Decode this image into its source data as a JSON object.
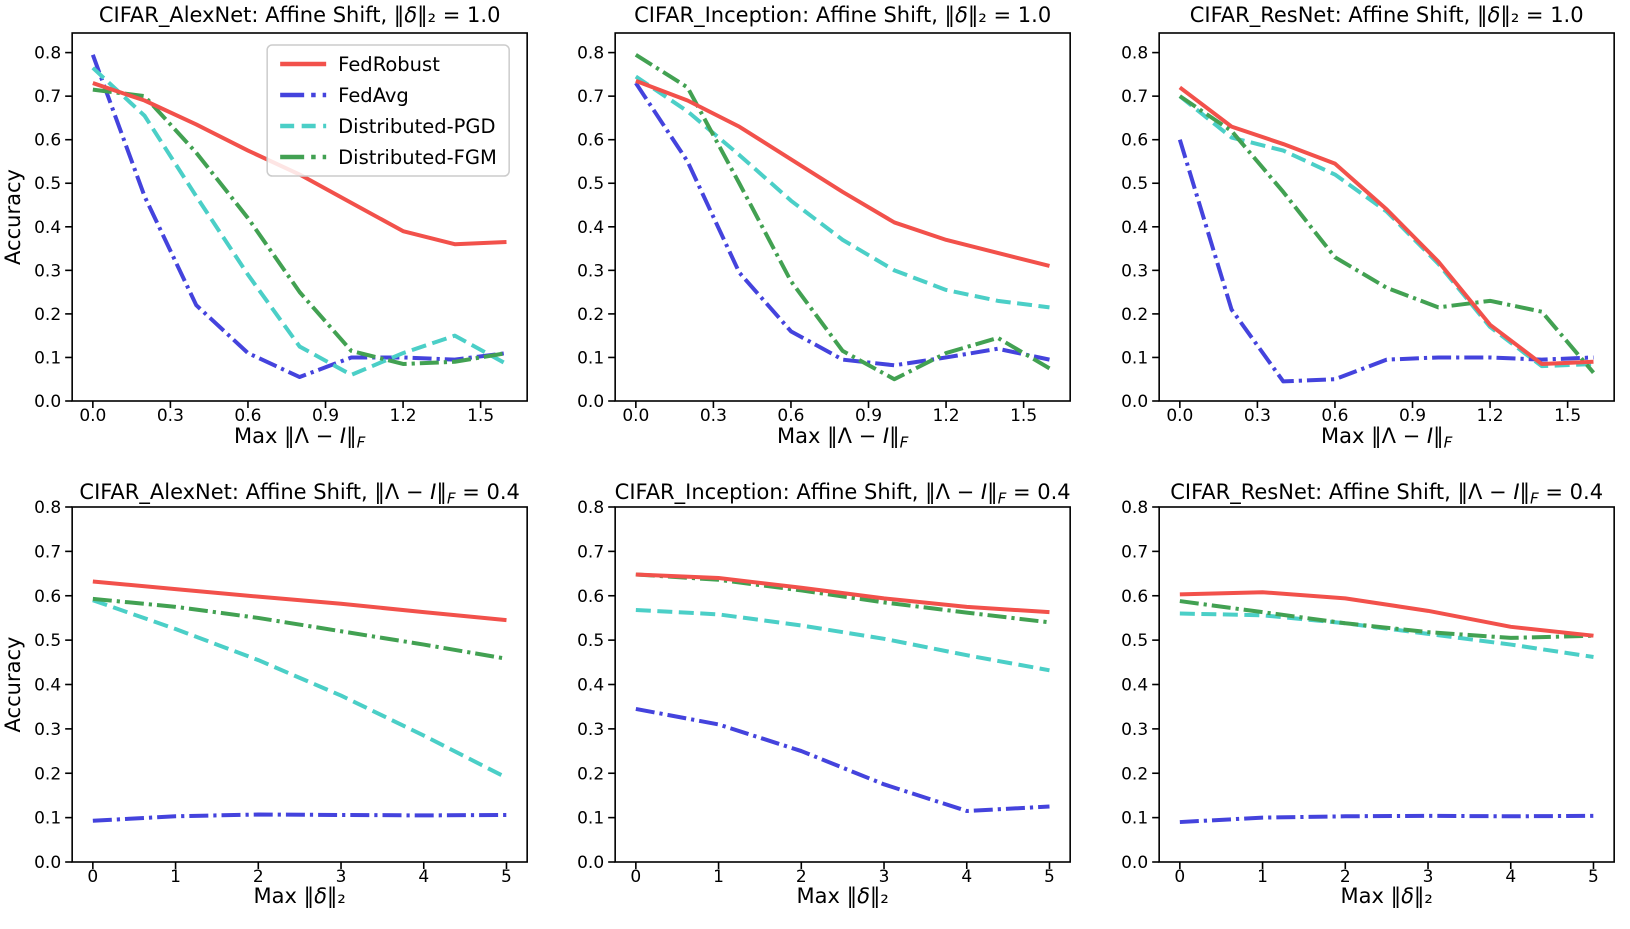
{
  "figure": {
    "background": "#ffffff",
    "ylabel": "Accuracy"
  },
  "colors": {
    "FedRobust": "#f2514b",
    "FedAvg": "#4443dd",
    "Distributed-PGD": "#4bcfc7",
    "Distributed-FGM": "#42a152"
  },
  "series_styles": {
    "FedRobust": "solid",
    "FedAvg": "dashdot",
    "Distributed-PGD": "dashed",
    "Distributed-FGM": "dashdot"
  },
  "draw_order": [
    "FedAvg",
    "Distributed-PGD",
    "Distributed-FGM",
    "FedRobust"
  ],
  "legend": {
    "location": "upper right of first subplot",
    "entries": [
      {
        "label": "FedRobust"
      },
      {
        "label": "FedAvg"
      },
      {
        "label": "Distributed-PGD"
      },
      {
        "label": "Distributed-FGM"
      }
    ]
  },
  "chart_data": [
    {
      "name": "cifar-alexnet-affine-shift-delta-1.0",
      "type": "line",
      "title_text": "CIFAR_AlexNet: Affine Shift, ‖δ‖₂ = 1.0",
      "title_segments": [
        {
          "t": "CIFAR_AlexNet: Affine Shift, ‖"
        },
        {
          "t": "δ",
          "i": true
        },
        {
          "t": "‖₂ = 1.0"
        }
      ],
      "xlabel_text": "Max ‖Λ − I‖F",
      "xlabel_segments": [
        {
          "t": "Max ‖Λ − "
        },
        {
          "t": "I",
          "i": true
        },
        {
          "t": "‖"
        },
        {
          "t": "F",
          "sub": true,
          "i": true
        }
      ],
      "ylabel": "Accuracy",
      "legend": true,
      "xlim": [
        -0.08,
        1.68
      ],
      "ylim": [
        0,
        0.845
      ],
      "xticks": {
        "values": [
          0,
          0.3,
          0.6,
          0.9,
          1.2,
          1.5
        ],
        "labels": [
          "0.0",
          "0.3",
          "0.6",
          "0.9",
          "1.2",
          "1.5"
        ]
      },
      "yticks": {
        "values": [
          0,
          0.1,
          0.2,
          0.3,
          0.4,
          0.5,
          0.6,
          0.7,
          0.8
        ],
        "labels": [
          "0.0",
          "0.1",
          "0.2",
          "0.3",
          "0.4",
          "0.5",
          "0.6",
          "0.7",
          "0.8"
        ]
      },
      "x": [
        0,
        0.2,
        0.4,
        0.6,
        0.8,
        1.0,
        1.2,
        1.4,
        1.6
      ],
      "series": [
        {
          "name": "FedRobust",
          "values": [
            0.73,
            0.69,
            0.635,
            0.575,
            0.52,
            0.455,
            0.39,
            0.36,
            0.365
          ]
        },
        {
          "name": "FedAvg",
          "values": [
            0.795,
            0.47,
            0.22,
            0.11,
            0.055,
            0.1,
            0.1,
            0.095,
            0.11
          ]
        },
        {
          "name": "Distributed-PGD",
          "values": [
            0.765,
            0.655,
            0.47,
            0.29,
            0.125,
            0.06,
            0.11,
            0.15,
            0.085
          ]
        },
        {
          "name": "Distributed-FGM",
          "values": [
            0.715,
            0.7,
            0.57,
            0.42,
            0.25,
            0.115,
            0.085,
            0.09,
            0.11
          ]
        }
      ]
    },
    {
      "name": "cifar-inception-affine-shift-delta-1.0",
      "type": "line",
      "title_text": "CIFAR_Inception: Affine Shift, ‖δ‖₂ = 1.0",
      "title_segments": [
        {
          "t": "CIFAR_Inception: Affine Shift, ‖"
        },
        {
          "t": "δ",
          "i": true
        },
        {
          "t": "‖₂ = 1.0"
        }
      ],
      "xlabel_text": "Max ‖Λ − I‖F",
      "xlabel_segments": [
        {
          "t": "Max ‖Λ − "
        },
        {
          "t": "I",
          "i": true
        },
        {
          "t": "‖"
        },
        {
          "t": "F",
          "sub": true,
          "i": true
        }
      ],
      "ylabel": null,
      "legend": false,
      "xlim": [
        -0.08,
        1.68
      ],
      "ylim": [
        0,
        0.845
      ],
      "xticks": {
        "values": [
          0,
          0.3,
          0.6,
          0.9,
          1.2,
          1.5
        ],
        "labels": [
          "0.0",
          "0.3",
          "0.6",
          "0.9",
          "1.2",
          "1.5"
        ]
      },
      "yticks": {
        "values": [
          0,
          0.1,
          0.2,
          0.3,
          0.4,
          0.5,
          0.6,
          0.7,
          0.8
        ],
        "labels": [
          "0.0",
          "0.1",
          "0.2",
          "0.3",
          "0.4",
          "0.5",
          "0.6",
          "0.7",
          "0.8"
        ]
      },
      "x": [
        0,
        0.2,
        0.4,
        0.6,
        0.8,
        1.0,
        1.2,
        1.4,
        1.6
      ],
      "series": [
        {
          "name": "FedRobust",
          "values": [
            0.735,
            0.69,
            0.63,
            0.555,
            0.48,
            0.41,
            0.37,
            0.34,
            0.31
          ]
        },
        {
          "name": "FedAvg",
          "values": [
            0.73,
            0.55,
            0.295,
            0.16,
            0.095,
            0.082,
            0.1,
            0.12,
            0.095
          ]
        },
        {
          "name": "Distributed-PGD",
          "values": [
            0.745,
            0.665,
            0.565,
            0.46,
            0.37,
            0.3,
            0.255,
            0.23,
            0.215
          ]
        },
        {
          "name": "Distributed-FGM",
          "values": [
            0.795,
            0.72,
            0.5,
            0.275,
            0.115,
            0.05,
            0.11,
            0.145,
            0.075
          ]
        }
      ]
    },
    {
      "name": "cifar-resnet-affine-shift-delta-1.0",
      "type": "line",
      "title_text": "CIFAR_ResNet: Affine Shift, ‖δ‖₂ = 1.0",
      "title_segments": [
        {
          "t": "CIFAR_ResNet: Affine Shift, ‖"
        },
        {
          "t": "δ",
          "i": true
        },
        {
          "t": "‖₂ = 1.0"
        }
      ],
      "xlabel_text": "Max ‖Λ − I‖F",
      "xlabel_segments": [
        {
          "t": "Max ‖Λ − "
        },
        {
          "t": "I",
          "i": true
        },
        {
          "t": "‖"
        },
        {
          "t": "F",
          "sub": true,
          "i": true
        }
      ],
      "ylabel": null,
      "legend": false,
      "xlim": [
        -0.08,
        1.68
      ],
      "ylim": [
        0,
        0.845
      ],
      "xticks": {
        "values": [
          0,
          0.3,
          0.6,
          0.9,
          1.2,
          1.5
        ],
        "labels": [
          "0.0",
          "0.3",
          "0.6",
          "0.9",
          "1.2",
          "1.5"
        ]
      },
      "yticks": {
        "values": [
          0,
          0.1,
          0.2,
          0.3,
          0.4,
          0.5,
          0.6,
          0.7,
          0.8
        ],
        "labels": [
          "0.0",
          "0.1",
          "0.2",
          "0.3",
          "0.4",
          "0.5",
          "0.6",
          "0.7",
          "0.8"
        ]
      },
      "x": [
        0,
        0.2,
        0.4,
        0.6,
        0.8,
        1.0,
        1.2,
        1.4,
        1.6
      ],
      "series": [
        {
          "name": "FedRobust",
          "values": [
            0.72,
            0.63,
            0.59,
            0.545,
            0.44,
            0.32,
            0.175,
            0.085,
            0.09
          ]
        },
        {
          "name": "FedAvg",
          "values": [
            0.6,
            0.21,
            0.045,
            0.05,
            0.095,
            0.1,
            0.1,
            0.095,
            0.1
          ]
        },
        {
          "name": "Distributed-PGD",
          "values": [
            0.7,
            0.605,
            0.575,
            0.52,
            0.435,
            0.315,
            0.17,
            0.08,
            0.085
          ]
        },
        {
          "name": "Distributed-FGM",
          "values": [
            0.7,
            0.62,
            0.48,
            0.33,
            0.26,
            0.215,
            0.23,
            0.205,
            0.065
          ]
        }
      ]
    },
    {
      "name": "cifar-alexnet-affine-shift-lambda-0.4",
      "type": "line",
      "title_text": "CIFAR_AlexNet: Affine Shift, ‖Λ − I‖F = 0.4",
      "title_segments": [
        {
          "t": "CIFAR_AlexNet: Affine Shift, ‖Λ − "
        },
        {
          "t": "I",
          "i": true
        },
        {
          "t": "‖"
        },
        {
          "t": "F",
          "sub": true,
          "i": true
        },
        {
          "t": " = 0.4"
        }
      ],
      "xlabel_text": "Max ‖δ‖₂",
      "xlabel_segments": [
        {
          "t": "Max ‖"
        },
        {
          "t": "δ",
          "i": true
        },
        {
          "t": "‖₂"
        }
      ],
      "ylabel": "Accuracy",
      "legend": false,
      "xlim": [
        -0.25,
        5.25
      ],
      "ylim": [
        0,
        0.8
      ],
      "xticks": {
        "values": [
          0,
          1,
          2,
          3,
          4,
          5
        ],
        "labels": [
          "0",
          "1",
          "2",
          "3",
          "4",
          "5"
        ]
      },
      "yticks": {
        "values": [
          0,
          0.1,
          0.2,
          0.3,
          0.4,
          0.5,
          0.6,
          0.7,
          0.8
        ],
        "labels": [
          "0.0",
          "0.1",
          "0.2",
          "0.3",
          "0.4",
          "0.5",
          "0.6",
          "0.7",
          "0.8"
        ]
      },
      "x": [
        0,
        1,
        2,
        3,
        4,
        5
      ],
      "series": [
        {
          "name": "FedRobust",
          "values": [
            0.632,
            0.615,
            0.598,
            0.582,
            0.563,
            0.545
          ]
        },
        {
          "name": "FedAvg",
          "values": [
            0.093,
            0.103,
            0.107,
            0.106,
            0.105,
            0.106
          ]
        },
        {
          "name": "Distributed-PGD",
          "values": [
            0.59,
            0.525,
            0.455,
            0.375,
            0.285,
            0.19
          ]
        },
        {
          "name": "Distributed-FGM",
          "values": [
            0.593,
            0.575,
            0.55,
            0.52,
            0.49,
            0.458
          ]
        }
      ]
    },
    {
      "name": "cifar-inception-affine-shift-lambda-0.4",
      "type": "line",
      "title_text": "CIFAR_Inception: Affine Shift, ‖Λ − I‖F = 0.4",
      "title_segments": [
        {
          "t": "CIFAR_Inception: Affine Shift, ‖Λ − "
        },
        {
          "t": "I",
          "i": true
        },
        {
          "t": "‖"
        },
        {
          "t": "F",
          "sub": true,
          "i": true
        },
        {
          "t": " = 0.4"
        }
      ],
      "xlabel_text": "Max ‖δ‖₂",
      "xlabel_segments": [
        {
          "t": "Max ‖"
        },
        {
          "t": "δ",
          "i": true
        },
        {
          "t": "‖₂"
        }
      ],
      "ylabel": null,
      "legend": false,
      "xlim": [
        -0.25,
        5.25
      ],
      "ylim": [
        0,
        0.8
      ],
      "xticks": {
        "values": [
          0,
          1,
          2,
          3,
          4,
          5
        ],
        "labels": [
          "0",
          "1",
          "2",
          "3",
          "4",
          "5"
        ]
      },
      "yticks": {
        "values": [
          0,
          0.1,
          0.2,
          0.3,
          0.4,
          0.5,
          0.6,
          0.7,
          0.8
        ],
        "labels": [
          "0.0",
          "0.1",
          "0.2",
          "0.3",
          "0.4",
          "0.5",
          "0.6",
          "0.7",
          "0.8"
        ]
      },
      "x": [
        0,
        1,
        2,
        3,
        4,
        5
      ],
      "series": [
        {
          "name": "FedRobust",
          "values": [
            0.648,
            0.64,
            0.618,
            0.594,
            0.575,
            0.563
          ]
        },
        {
          "name": "FedAvg",
          "values": [
            0.345,
            0.31,
            0.25,
            0.175,
            0.115,
            0.125
          ]
        },
        {
          "name": "Distributed-PGD",
          "values": [
            0.568,
            0.558,
            0.533,
            0.503,
            0.466,
            0.432
          ]
        },
        {
          "name": "Distributed-FGM",
          "values": [
            0.648,
            0.636,
            0.612,
            0.585,
            0.562,
            0.54
          ]
        }
      ]
    },
    {
      "name": "cifar-resnet-affine-shift-lambda-0.4",
      "type": "line",
      "title_text": "CIFAR_ResNet: Affine Shift, ‖Λ − I‖F = 0.4",
      "title_segments": [
        {
          "t": "CIFAR_ResNet: Affine Shift, ‖Λ − "
        },
        {
          "t": "I",
          "i": true
        },
        {
          "t": "‖"
        },
        {
          "t": "F",
          "sub": true,
          "i": true
        },
        {
          "t": " = 0.4"
        }
      ],
      "xlabel_text": "Max ‖δ‖₂",
      "xlabel_segments": [
        {
          "t": "Max ‖"
        },
        {
          "t": "δ",
          "i": true
        },
        {
          "t": "‖₂"
        }
      ],
      "ylabel": null,
      "legend": false,
      "xlim": [
        -0.25,
        5.25
      ],
      "ylim": [
        0,
        0.8
      ],
      "xticks": {
        "values": [
          0,
          1,
          2,
          3,
          4,
          5
        ],
        "labels": [
          "0",
          "1",
          "2",
          "3",
          "4",
          "5"
        ]
      },
      "yticks": {
        "values": [
          0,
          0.1,
          0.2,
          0.3,
          0.4,
          0.5,
          0.6,
          0.7,
          0.8
        ],
        "labels": [
          "0.0",
          "0.1",
          "0.2",
          "0.3",
          "0.4",
          "0.5",
          "0.6",
          "0.7",
          "0.8"
        ]
      },
      "x": [
        0,
        1,
        2,
        3,
        4,
        5
      ],
      "series": [
        {
          "name": "FedRobust",
          "values": [
            0.603,
            0.608,
            0.594,
            0.566,
            0.53,
            0.51
          ]
        },
        {
          "name": "FedAvg",
          "values": [
            0.09,
            0.1,
            0.103,
            0.104,
            0.103,
            0.104
          ]
        },
        {
          "name": "Distributed-PGD",
          "values": [
            0.56,
            0.556,
            0.538,
            0.514,
            0.49,
            0.462
          ]
        },
        {
          "name": "Distributed-FGM",
          "values": [
            0.588,
            0.563,
            0.538,
            0.518,
            0.505,
            0.51
          ]
        }
      ]
    }
  ]
}
